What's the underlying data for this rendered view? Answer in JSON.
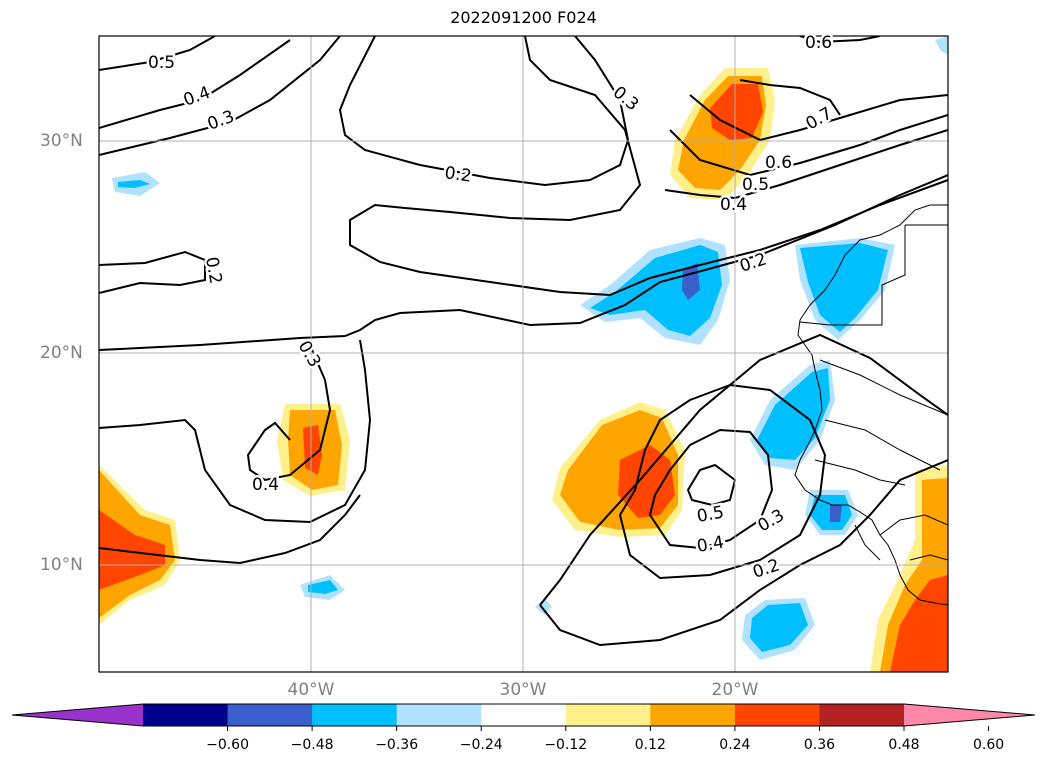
{
  "title": "2022091200 F024",
  "axes": {
    "lat_labels": [
      "30°N",
      "20°N",
      "10°N"
    ],
    "lon_labels": [
      "40°W",
      "30°W",
      "20°W"
    ]
  },
  "contour_labels": [
    "0.5",
    "0.4",
    "0.3",
    "0.2",
    "0.3",
    "0.6",
    "0.7",
    "0.6",
    "0.5",
    "0.4",
    "0.2",
    "0.2",
    "0.3",
    "0.4",
    "0.5",
    "0.4",
    "0.3",
    "0.2"
  ],
  "colorbar": {
    "ticks": [
      "−0.60",
      "−0.48",
      "−0.36",
      "−0.24",
      "−0.12",
      "0.12",
      "0.24",
      "0.36",
      "0.48",
      "0.60"
    ],
    "colors": [
      "#9932cc",
      "#00008b",
      "#3a5fcd",
      "#00bfff",
      "#b0e2ff",
      "#ffffff",
      "#fff08c",
      "#ffa500",
      "#ff4500",
      "#b22222",
      "#ff88aa"
    ]
  }
}
